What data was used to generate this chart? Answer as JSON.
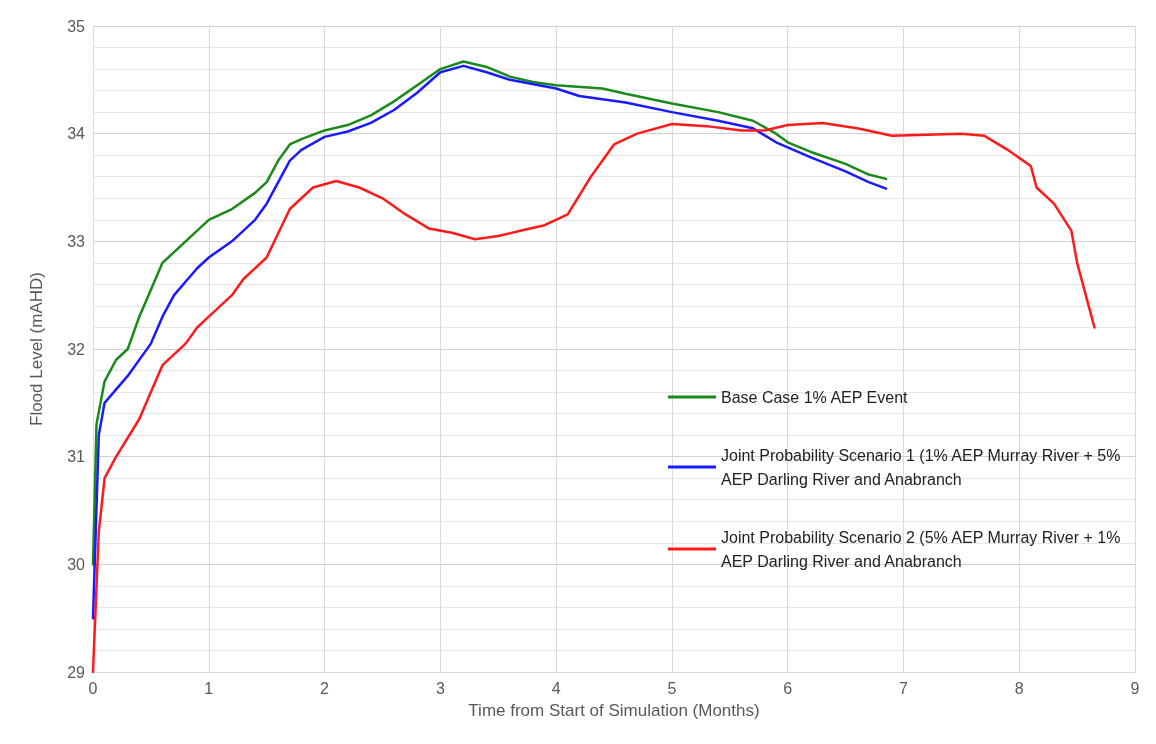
{
  "chart_data": {
    "type": "line",
    "xlabel": "Time from Start of Simulation (Months)",
    "ylabel": "Flood Level (mAHD)",
    "xlim": [
      0,
      9
    ],
    "xticks": [
      0,
      1,
      2,
      3,
      4,
      5,
      6,
      7,
      8,
      9
    ],
    "ylim": [
      29,
      35
    ],
    "yticks": [
      29,
      30,
      31,
      32,
      33,
      34,
      35
    ],
    "grid": true,
    "legend": "bottom right",
    "marker": "none",
    "line_style": "solid",
    "series": [
      {
        "name": "Base Case 1% AEP Event",
        "color": "#1a8a1a",
        "x": [
          0,
          0.03,
          0.1,
          0.2,
          0.3,
          0.4,
          0.5,
          0.6,
          0.7,
          0.8,
          0.9,
          1.0,
          1.2,
          1.4,
          1.5,
          1.6,
          1.7,
          1.8,
          2.0,
          2.2,
          2.4,
          2.6,
          2.8,
          3.0,
          3.2,
          3.4,
          3.6,
          3.8,
          4.0,
          4.4,
          4.6,
          5.0,
          5.4,
          5.7,
          5.9,
          6.0,
          6.2,
          6.5,
          6.7,
          6.85
        ],
        "values": [
          30.0,
          31.3,
          31.7,
          31.9,
          32.0,
          32.3,
          32.55,
          32.8,
          32.9,
          33.0,
          33.1,
          33.2,
          33.3,
          33.45,
          33.55,
          33.75,
          33.9,
          33.95,
          34.03,
          34.08,
          34.17,
          34.3,
          34.45,
          34.6,
          34.67,
          34.62,
          34.53,
          34.48,
          34.45,
          34.42,
          34.37,
          34.28,
          34.2,
          34.12,
          34.0,
          33.92,
          33.83,
          33.72,
          33.62,
          33.58
        ]
      },
      {
        "name": "Joint Probability Scenario 1 (1% AEP Murray River + 5% AEP Darling River and Anabranch",
        "color": "#1a1aff",
        "x": [
          0,
          0.05,
          0.1,
          0.3,
          0.5,
          0.6,
          0.7,
          0.9,
          1.0,
          1.2,
          1.4,
          1.5,
          1.6,
          1.7,
          1.8,
          2.0,
          2.2,
          2.4,
          2.6,
          2.8,
          3.0,
          3.2,
          3.4,
          3.6,
          4.0,
          4.2,
          4.6,
          5.0,
          5.4,
          5.7,
          5.9,
          6.2,
          6.5,
          6.7,
          6.85
        ],
        "values": [
          29.5,
          31.2,
          31.5,
          31.75,
          32.05,
          32.3,
          32.5,
          32.75,
          32.85,
          33.0,
          33.2,
          33.35,
          33.55,
          33.75,
          33.85,
          33.97,
          34.02,
          34.1,
          34.22,
          34.38,
          34.57,
          34.63,
          34.57,
          34.5,
          34.42,
          34.35,
          34.29,
          34.2,
          34.12,
          34.05,
          33.92,
          33.78,
          33.65,
          33.55,
          33.49
        ]
      },
      {
        "name": "Joint Probability Scenario 2 (5% AEP Murray River + 1% AEP Darling River and Anabranch",
        "color": "#ff1a1a",
        "x": [
          0,
          0.05,
          0.1,
          0.2,
          0.4,
          0.5,
          0.6,
          0.8,
          0.9,
          1.0,
          1.2,
          1.3,
          1.5,
          1.7,
          1.9,
          2.1,
          2.3,
          2.5,
          2.7,
          2.9,
          3.1,
          3.3,
          3.5,
          3.7,
          3.9,
          4.1,
          4.3,
          4.5,
          4.7,
          5.0,
          5.3,
          5.6,
          5.8,
          6.0,
          6.3,
          6.6,
          6.9,
          7.2,
          7.5,
          7.7,
          7.9,
          8.1,
          8.15,
          8.3,
          8.45,
          8.5,
          8.6,
          8.65
        ],
        "values": [
          29.0,
          30.3,
          30.8,
          31.0,
          31.35,
          31.6,
          31.85,
          32.05,
          32.2,
          32.3,
          32.5,
          32.65,
          32.85,
          33.3,
          33.5,
          33.56,
          33.5,
          33.4,
          33.25,
          33.12,
          33.08,
          33.02,
          33.05,
          33.1,
          33.15,
          33.25,
          33.6,
          33.9,
          34.0,
          34.09,
          34.07,
          34.03,
          34.03,
          34.08,
          34.1,
          34.05,
          33.98,
          33.99,
          34.0,
          33.98,
          33.85,
          33.7,
          33.5,
          33.35,
          33.1,
          32.8,
          32.4,
          32.2
        ]
      }
    ]
  }
}
